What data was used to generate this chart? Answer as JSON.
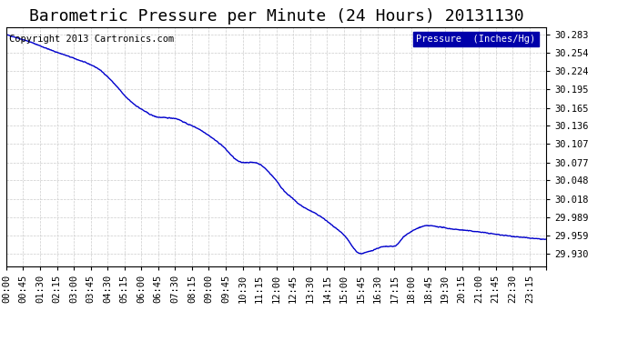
{
  "title": "Barometric Pressure per Minute (24 Hours) 20131130",
  "background_color": "#ffffff",
  "plot_bg_color": "#ffffff",
  "line_color": "#0000cc",
  "line_width": 1.0,
  "yticks": [
    29.93,
    29.959,
    29.989,
    30.018,
    30.048,
    30.077,
    30.107,
    30.136,
    30.165,
    30.195,
    30.224,
    30.254,
    30.283
  ],
  "ylim": [
    29.91,
    30.295
  ],
  "xtick_labels": [
    "00:00",
    "00:45",
    "01:30",
    "02:15",
    "03:00",
    "03:45",
    "04:30",
    "05:15",
    "06:00",
    "06:45",
    "07:30",
    "08:15",
    "09:00",
    "09:45",
    "10:30",
    "11:15",
    "12:00",
    "12:45",
    "13:30",
    "14:15",
    "15:00",
    "15:45",
    "16:30",
    "17:15",
    "18:00",
    "18:45",
    "19:30",
    "20:15",
    "21:00",
    "21:45",
    "22:30",
    "23:15"
  ],
  "copyright_text": "Copyright 2013 Cartronics.com",
  "legend_label": "Pressure  (Inches/Hg)",
  "legend_bg": "#0000aa",
  "legend_text_color": "#ffffff",
  "grid_color": "#cccccc",
  "grid_style": "--",
  "title_fontsize": 13,
  "tick_fontsize": 7.5,
  "copyright_fontsize": 7.5
}
